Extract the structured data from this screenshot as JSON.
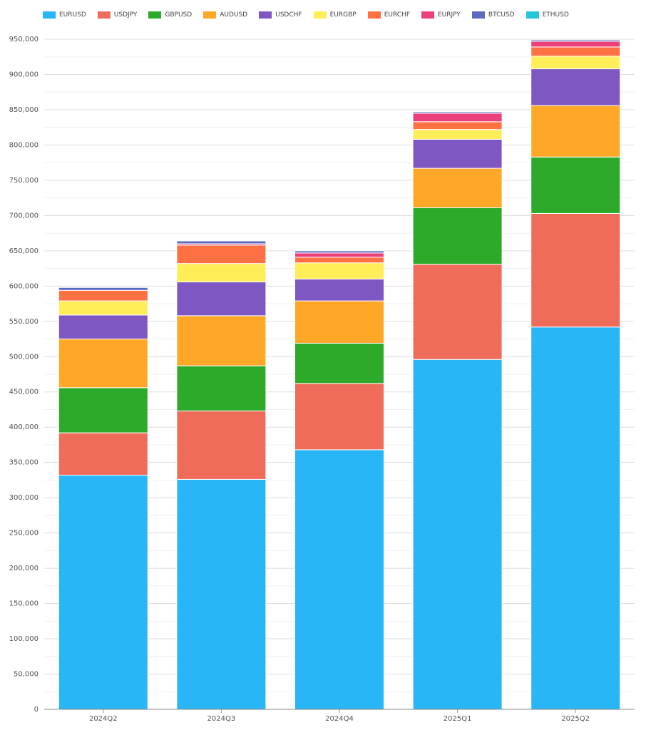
{
  "chart_data": {
    "type": "bar",
    "stacked": true,
    "categories": [
      "2024Q2",
      "2024Q3",
      "2024Q4",
      "2025Q1",
      "2025Q2"
    ],
    "series": [
      {
        "name": "EURUSD",
        "color": "#29b6f6",
        "values": [
          332000,
          326000,
          368000,
          496000,
          542000
        ]
      },
      {
        "name": "USDJPY",
        "color": "#ef6c5b",
        "values": [
          60000,
          97000,
          94000,
          135000,
          161000
        ]
      },
      {
        "name": "GBPUSD",
        "color": "#2eaa2b",
        "values": [
          64000,
          64000,
          57000,
          80000,
          80000
        ]
      },
      {
        "name": "AUDUSD",
        "color": "#ffa726",
        "values": [
          69000,
          71000,
          60000,
          56000,
          73000
        ]
      },
      {
        "name": "USDCHF",
        "color": "#7e57c2",
        "values": [
          34000,
          48000,
          31000,
          41000,
          52000
        ]
      },
      {
        "name": "EURGBP",
        "color": "#ffee58",
        "values": [
          20000,
          26000,
          23000,
          14000,
          18000
        ]
      },
      {
        "name": "EURCHF",
        "color": "#ff7043",
        "values": [
          15000,
          26000,
          8000,
          11000,
          13000
        ]
      },
      {
        "name": "EURJPY",
        "color": "#ec407a",
        "values": [
          0,
          2000,
          6000,
          12000,
          8000
        ]
      },
      {
        "name": "BTCUSD",
        "color": "#5c6bc0",
        "values": [
          4000,
          4000,
          3000,
          2000,
          2000
        ]
      },
      {
        "name": "ETHUSD",
        "color": "#26c6da",
        "values": [
          0,
          0,
          0,
          0,
          0
        ]
      }
    ],
    "ylim": [
      0,
      950000
    ],
    "yticks": [
      0,
      50000,
      100000,
      150000,
      200000,
      250000,
      300000,
      350000,
      400000,
      450000,
      500000,
      550000,
      600000,
      650000,
      700000,
      750000,
      800000,
      850000,
      900000,
      950000
    ],
    "ytick_labels": [
      "0",
      "50,000",
      "100,000",
      "150,000",
      "200,000",
      "250,000",
      "300,000",
      "350,000",
      "400,000",
      "450,000",
      "500,000",
      "550,000",
      "600,000",
      "650,000",
      "700,000",
      "750,000",
      "800,000",
      "850,000",
      "900,000",
      "950,000"
    ],
    "grid": true,
    "legend_position": "top-left"
  }
}
